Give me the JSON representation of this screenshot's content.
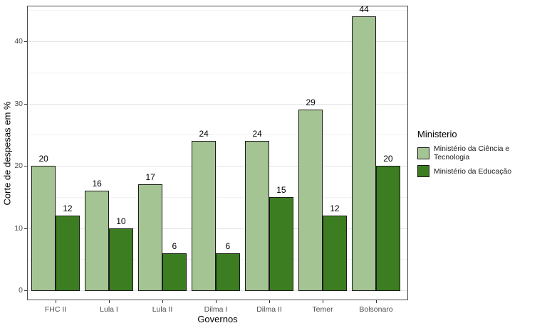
{
  "chart_data": {
    "type": "bar",
    "title": "",
    "xlabel": "Governos",
    "ylabel": "Corte de despesas em %",
    "legend_title": "Ministerio",
    "legend_position": "right",
    "grid": true,
    "categories": [
      "FHC II",
      "Lula I",
      "Lula II",
      "Dilma I",
      "Dilma II",
      "Temer",
      "Bolsonaro"
    ],
    "series": [
      {
        "name": "Ministério da Ciência e Tecnologia",
        "color": "#a5c494",
        "values": [
          20,
          16,
          17,
          24,
          24,
          29,
          44
        ]
      },
      {
        "name": "Ministério da Educação",
        "color": "#3b7d20",
        "values": [
          12,
          10,
          6,
          6,
          15,
          12,
          20
        ]
      }
    ],
    "bar_labels": true,
    "bar_outline_color": "#1a1a1a",
    "ylim": [
      -1.6,
      45.7
    ],
    "yticks": [
      0,
      10,
      20,
      30,
      40
    ],
    "yticks_minor": [
      5,
      15,
      25,
      35,
      45
    ]
  }
}
